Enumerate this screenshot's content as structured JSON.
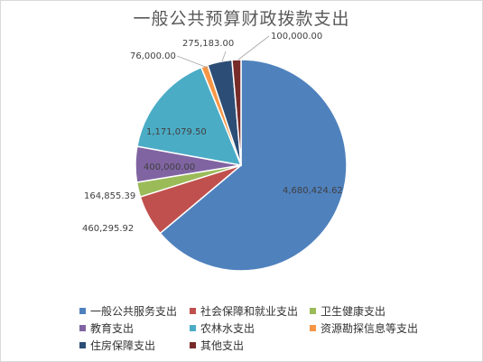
{
  "chart_data": {
    "type": "pie",
    "title": "一般公共预算财政拨款支出",
    "categories": [
      "一般公共服务支出",
      "社会保障和就业支出",
      "卫生健康支出",
      "教育支出",
      "农林水支出",
      "资源勘探信息等支出",
      "住房保障支出",
      "其他支出"
    ],
    "values": [
      4680424.62,
      460295.92,
      164855.39,
      400000.0,
      1171079.5,
      76000.0,
      275183.0,
      100000.0
    ],
    "data_labels": [
      "4,680,424.62",
      "460,295.92",
      "164,855.39",
      "400,000.00",
      "1,171,079.50",
      "76,000.00",
      "275,183.00",
      "100,000.00"
    ],
    "colors": [
      "#4f81bd",
      "#c0504d",
      "#9bbb59",
      "#8064a2",
      "#4bacc6",
      "#f79646",
      "#2c4d75",
      "#772c2a"
    ],
    "legend_position": "bottom"
  }
}
